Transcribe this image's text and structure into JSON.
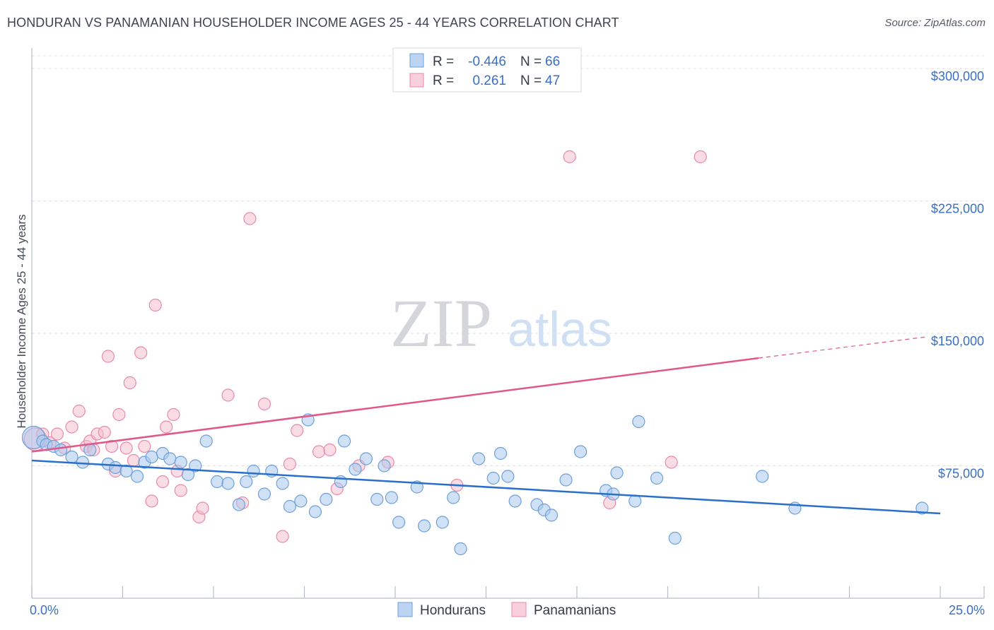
{
  "header": {
    "title": "HONDURAN VS PANAMANIAN HOUSEHOLDER INCOME AGES 25 - 44 YEARS CORRELATION CHART",
    "source": "Source: ZipAtlas.com"
  },
  "watermark": {
    "zip": "ZIP",
    "atlas": "atlas"
  },
  "legend_box": {
    "rows": [
      {
        "r_label": "R =",
        "r_value": "-0.446",
        "n_label": "N =",
        "n_value": "66"
      },
      {
        "r_label": "R =",
        "r_value": "0.261",
        "n_label": "N =",
        "n_value": "47"
      }
    ]
  },
  "bottom_legend": {
    "hondurans": "Hondurans",
    "panamanians": "Panamanians"
  },
  "colors": {
    "blue_fill": "#a9c8ee",
    "blue_stroke": "#6c9fda",
    "blue_line": "#2a6fca",
    "pink_fill": "#f5bfd0",
    "pink_stroke": "#e88aa8",
    "pink_line": "#e0588a",
    "grid": "#dcdfe6",
    "tick_label": "#3a6fc4"
  },
  "chart_data": {
    "type": "scatter",
    "title": "HONDURAN VS PANAMANIAN HOUSEHOLDER INCOME AGES 25 - 44 YEARS CORRELATION CHART",
    "xlabel": "",
    "ylabel": "Householder Income Ages 25 - 44 years",
    "xlim": [
      0,
      25
    ],
    "ylim": [
      0,
      315000
    ],
    "x_tick_labels": [
      "0.0%",
      "25.0%"
    ],
    "y_ticks": [
      75000,
      150000,
      225000,
      300000
    ],
    "y_tick_labels": [
      "$75,000",
      "$150,000",
      "$225,000",
      "$300,000"
    ],
    "grid": true,
    "series": [
      {
        "name": "Hondurans",
        "r": -0.446,
        "n": 66,
        "trend": {
          "x": [
            0,
            25
          ],
          "y": [
            78000,
            48000
          ]
        },
        "points": [
          [
            0.05,
            91000
          ],
          [
            0.3,
            89000
          ],
          [
            0.4,
            87000
          ],
          [
            0.6,
            86000
          ],
          [
            0.8,
            84000
          ],
          [
            1.1,
            80000
          ],
          [
            1.4,
            77000
          ],
          [
            1.6,
            84000
          ],
          [
            2.1,
            76000
          ],
          [
            2.3,
            74000
          ],
          [
            2.6,
            72000
          ],
          [
            2.9,
            69000
          ],
          [
            3.1,
            77000
          ],
          [
            3.3,
            80000
          ],
          [
            3.6,
            82000
          ],
          [
            3.8,
            79000
          ],
          [
            4.1,
            77000
          ],
          [
            4.3,
            70000
          ],
          [
            4.5,
            75000
          ],
          [
            4.8,
            89000
          ],
          [
            5.1,
            66000
          ],
          [
            5.4,
            65000
          ],
          [
            5.7,
            53000
          ],
          [
            5.9,
            66000
          ],
          [
            6.1,
            72000
          ],
          [
            6.4,
            59000
          ],
          [
            6.6,
            72000
          ],
          [
            6.9,
            65000
          ],
          [
            7.1,
            52000
          ],
          [
            7.4,
            55000
          ],
          [
            7.6,
            101000
          ],
          [
            7.8,
            49000
          ],
          [
            8.1,
            56000
          ],
          [
            8.5,
            66000
          ],
          [
            8.6,
            89000
          ],
          [
            8.9,
            73000
          ],
          [
            9.2,
            79000
          ],
          [
            9.5,
            56000
          ],
          [
            9.7,
            75000
          ],
          [
            9.9,
            57000
          ],
          [
            10.1,
            43000
          ],
          [
            10.6,
            63000
          ],
          [
            10.8,
            41000
          ],
          [
            11.3,
            43000
          ],
          [
            11.6,
            57000
          ],
          [
            11.8,
            28000
          ],
          [
            12.3,
            79000
          ],
          [
            12.7,
            68000
          ],
          [
            12.9,
            82000
          ],
          [
            13.1,
            69000
          ],
          [
            13.3,
            55000
          ],
          [
            13.9,
            53000
          ],
          [
            14.1,
            50000
          ],
          [
            14.3,
            47000
          ],
          [
            14.7,
            67000
          ],
          [
            15.1,
            83000
          ],
          [
            15.8,
            61000
          ],
          [
            16.0,
            59000
          ],
          [
            16.1,
            71000
          ],
          [
            16.6,
            55000
          ],
          [
            16.7,
            100000
          ],
          [
            17.2,
            68000
          ],
          [
            17.7,
            34000
          ],
          [
            20.1,
            69000
          ],
          [
            21.0,
            51000
          ],
          [
            24.5,
            51000
          ]
        ]
      },
      {
        "name": "Panamanians",
        "r": 0.261,
        "n": 47,
        "trend": {
          "x": [
            0,
            20,
            25
          ],
          "y": [
            83000,
            136000,
            148000
          ]
        },
        "points": [
          [
            0.1,
            90000
          ],
          [
            0.3,
            93000
          ],
          [
            0.5,
            88000
          ],
          [
            0.7,
            93000
          ],
          [
            0.9,
            85000
          ],
          [
            1.1,
            97000
          ],
          [
            1.3,
            106000
          ],
          [
            1.5,
            86000
          ],
          [
            1.6,
            89000
          ],
          [
            1.7,
            84000
          ],
          [
            1.8,
            93000
          ],
          [
            2.0,
            94000
          ],
          [
            2.1,
            137000
          ],
          [
            2.2,
            86000
          ],
          [
            2.3,
            72000
          ],
          [
            2.4,
            104000
          ],
          [
            2.6,
            85000
          ],
          [
            2.7,
            122000
          ],
          [
            2.8,
            78000
          ],
          [
            3.0,
            139000
          ],
          [
            3.1,
            86000
          ],
          [
            3.3,
            55000
          ],
          [
            3.4,
            166000
          ],
          [
            3.6,
            66000
          ],
          [
            3.7,
            97000
          ],
          [
            3.9,
            104000
          ],
          [
            4.0,
            72000
          ],
          [
            4.1,
            61000
          ],
          [
            4.6,
            46000
          ],
          [
            4.7,
            51000
          ],
          [
            5.4,
            115000
          ],
          [
            5.8,
            54000
          ],
          [
            6.0,
            215000
          ],
          [
            6.4,
            110000
          ],
          [
            6.9,
            35000
          ],
          [
            7.1,
            76000
          ],
          [
            7.3,
            95000
          ],
          [
            7.9,
            83000
          ],
          [
            8.2,
            84000
          ],
          [
            8.4,
            62000
          ],
          [
            9.0,
            75000
          ],
          [
            9.8,
            77000
          ],
          [
            11.7,
            64000
          ],
          [
            14.8,
            250000
          ],
          [
            15.9,
            54000
          ],
          [
            17.6,
            77000
          ],
          [
            18.4,
            250000
          ]
        ]
      }
    ]
  }
}
